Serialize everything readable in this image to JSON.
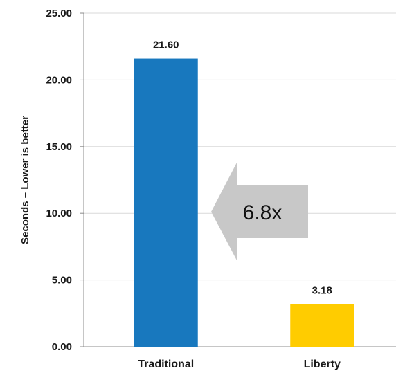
{
  "chart_data": {
    "type": "bar",
    "categories": [
      "Traditional",
      "Liberty"
    ],
    "values": [
      21.6,
      3.18
    ],
    "value_labels": [
      "21.60",
      "3.18"
    ],
    "colors": [
      "#1878BE",
      "#FFCC00"
    ],
    "ylabel": "Seconds – Lower is better",
    "xlabel": "",
    "title": "",
    "ylim": [
      0,
      25
    ],
    "yticks": [
      0,
      5,
      10,
      15,
      20,
      25
    ],
    "ytick_labels": [
      "0.00",
      "5.00",
      "10.00",
      "15.00",
      "20.00",
      "25.00"
    ],
    "grid": "horizontal",
    "annotation": {
      "text": "6.8x",
      "shape": "left-arrow",
      "color": "#C8C8C8"
    }
  }
}
